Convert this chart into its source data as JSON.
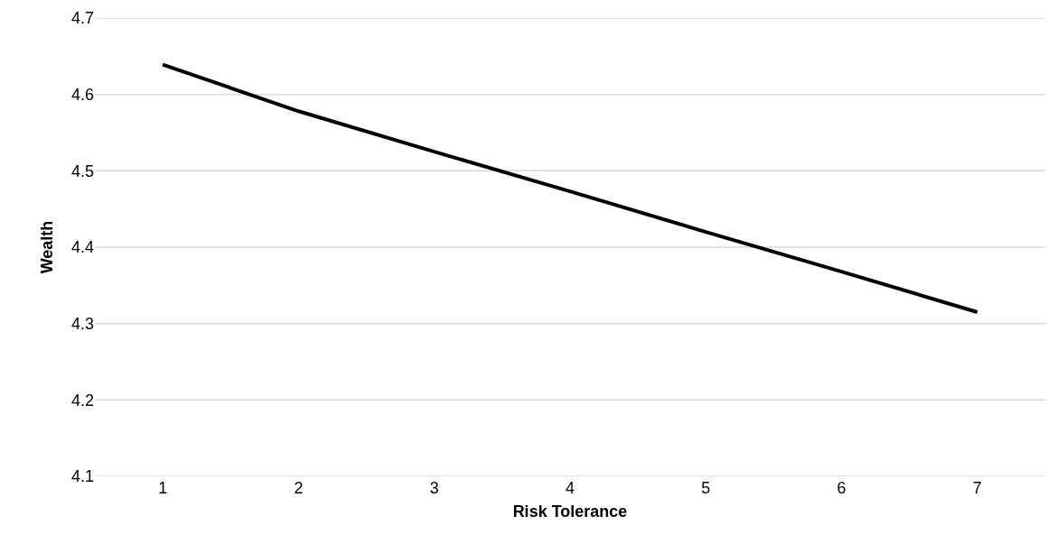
{
  "chart_data": {
    "type": "line",
    "xlabel": "Risk Tolerance",
    "ylabel": "Wealth",
    "categories": [
      "1",
      "2",
      "3",
      "4",
      "5",
      "6",
      "7"
    ],
    "series": [
      {
        "color": "#000000",
        "values": [
          4.639,
          4.578,
          4.525,
          4.473,
          4.42,
          4.368,
          4.315
        ]
      }
    ],
    "ylim": [
      4.1,
      4.7
    ],
    "yticks": [
      4.1,
      4.2,
      4.3,
      4.4,
      4.5,
      4.6,
      4.7
    ],
    "grid": "y",
    "marker": "none",
    "line_style": "solid"
  }
}
